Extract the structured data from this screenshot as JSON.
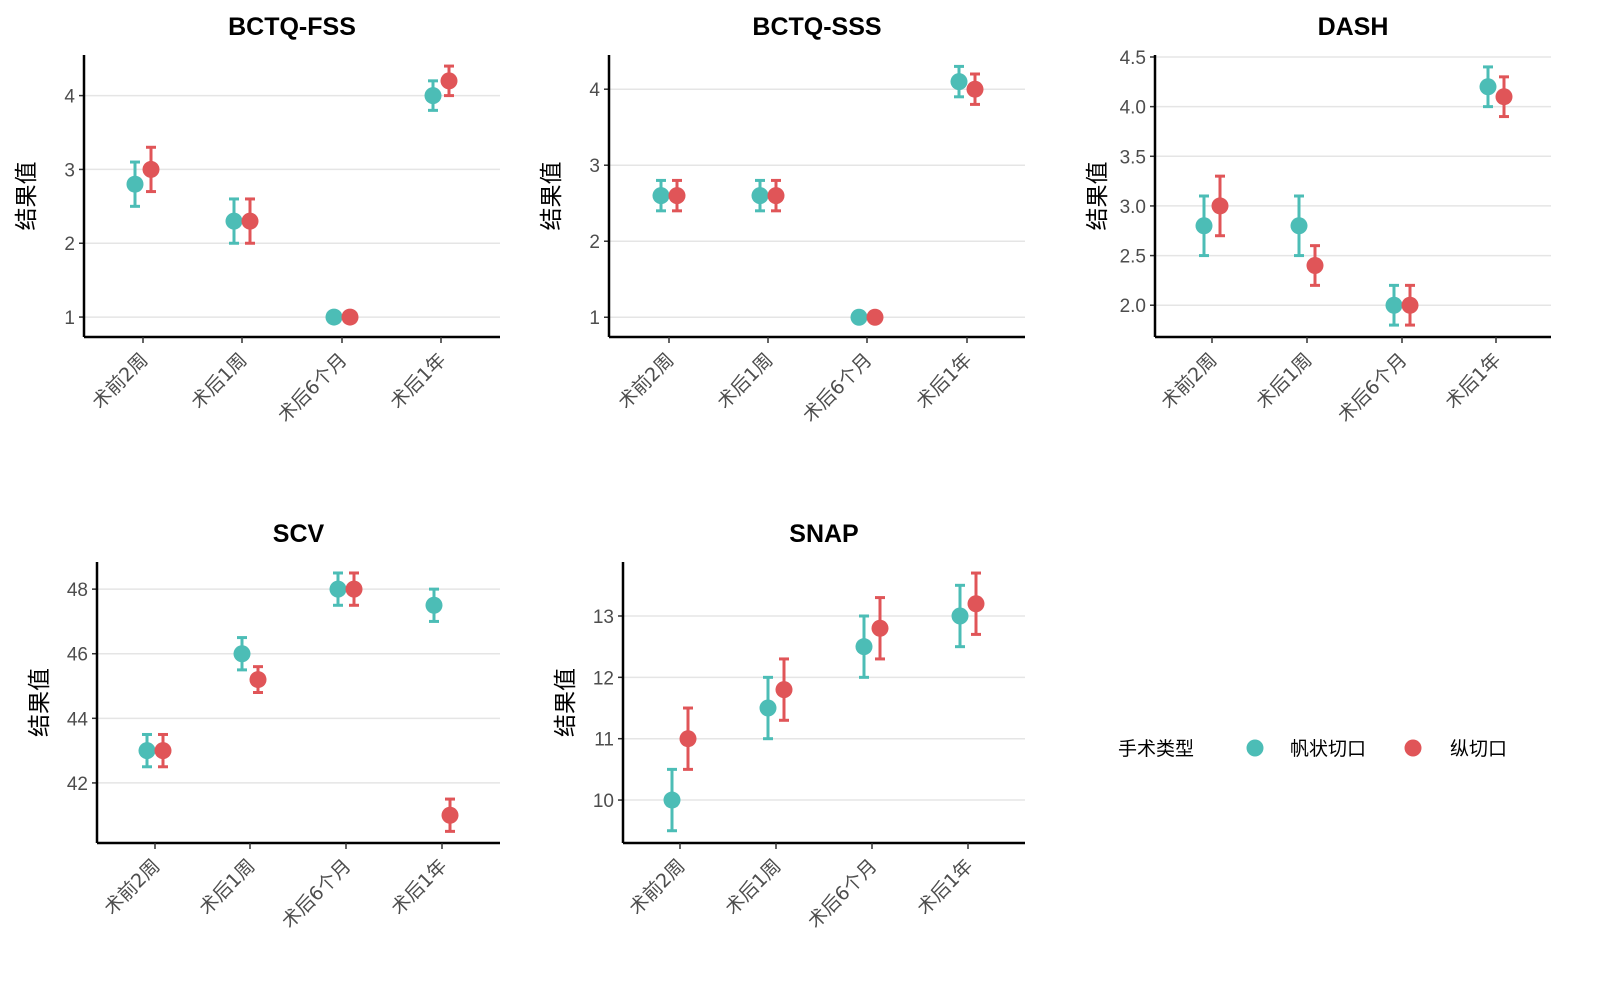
{
  "chart_data": [
    {
      "type": "scatter",
      "title": "BCTQ-FSS",
      "ylabel": "结果值",
      "categories": [
        "术前2周",
        "术后1周",
        "术后6个月",
        "术后1年"
      ],
      "ylim": [
        0.73,
        4.55
      ],
      "yticks": [
        1,
        2,
        3,
        4
      ],
      "grid": true,
      "series": [
        {
          "name": "帆状切口",
          "values": [
            2.8,
            2.3,
            1.0,
            4.0
          ],
          "lower": [
            2.5,
            2.0,
            0.95,
            3.8
          ],
          "upper": [
            3.1,
            2.6,
            1.05,
            4.2
          ]
        },
        {
          "name": "纵切口",
          "values": [
            3.0,
            2.3,
            1.0,
            4.2
          ],
          "lower": [
            2.7,
            2.0,
            0.95,
            4.0
          ],
          "upper": [
            3.3,
            2.6,
            1.05,
            4.4
          ]
        }
      ]
    },
    {
      "type": "scatter",
      "title": "BCTQ-SSS",
      "ylabel": "结果值",
      "categories": [
        "术前2周",
        "术后1周",
        "术后6个月",
        "术后1年"
      ],
      "ylim": [
        0.74,
        4.45
      ],
      "yticks": [
        1,
        2,
        3,
        4
      ],
      "grid": true,
      "series": [
        {
          "name": "帆状切口",
          "values": [
            2.6,
            2.6,
            1.0,
            4.1
          ],
          "lower": [
            2.4,
            2.4,
            0.95,
            3.9
          ],
          "upper": [
            2.8,
            2.8,
            1.05,
            4.3
          ]
        },
        {
          "name": "纵切口",
          "values": [
            2.6,
            2.6,
            1.0,
            4.0
          ],
          "lower": [
            2.4,
            2.4,
            0.95,
            3.8
          ],
          "upper": [
            2.8,
            2.8,
            1.05,
            4.2
          ]
        }
      ]
    },
    {
      "type": "scatter",
      "title": "DASH",
      "ylabel": "结果值",
      "categories": [
        "术前2周",
        "术后1周",
        "术后6个月",
        "术后1年"
      ],
      "ylim": [
        1.68,
        4.52
      ],
      "yticks": [
        "2.0",
        "2.5",
        "3.0",
        "3.5",
        "4.0",
        "4.5"
      ],
      "grid": true,
      "series": [
        {
          "name": "帆状切口",
          "values": [
            2.8,
            2.8,
            2.0,
            4.2
          ],
          "lower": [
            2.5,
            2.5,
            1.8,
            4.0
          ],
          "upper": [
            3.1,
            3.1,
            2.2,
            4.4
          ]
        },
        {
          "name": "纵切口",
          "values": [
            3.0,
            2.4,
            2.0,
            4.1
          ],
          "lower": [
            2.7,
            2.2,
            1.8,
            3.9
          ],
          "upper": [
            3.3,
            2.6,
            2.2,
            4.3
          ]
        }
      ]
    },
    {
      "type": "scatter",
      "title": "SCV",
      "ylabel": "结果值",
      "categories": [
        "术前2周",
        "术后1周",
        "术后6个月",
        "术后1年"
      ],
      "ylim": [
        40.14,
        48.84
      ],
      "yticks": [
        42,
        44,
        46,
        48
      ],
      "grid": true,
      "series": [
        {
          "name": "帆状切口",
          "values": [
            43,
            46,
            48,
            47.5
          ],
          "lower": [
            42.5,
            45.5,
            47.5,
            47
          ],
          "upper": [
            43.5,
            46.5,
            48.5,
            48
          ]
        },
        {
          "name": "纵切口",
          "values": [
            43,
            45.2,
            48,
            41
          ],
          "lower": [
            42.5,
            44.8,
            47.5,
            40.5
          ],
          "upper": [
            43.5,
            45.6,
            48.5,
            41.5
          ]
        }
      ]
    },
    {
      "type": "scatter",
      "title": "SNAP",
      "ylabel": "结果值",
      "categories": [
        "术前2周",
        "术后1周",
        "术后6个月",
        "术后1年"
      ],
      "ylim": [
        9.3,
        13.88
      ],
      "yticks": [
        10,
        11,
        12,
        13
      ],
      "grid": true,
      "series": [
        {
          "name": "帆状切口",
          "values": [
            10,
            11.5,
            12.5,
            13
          ],
          "lower": [
            9.5,
            11,
            12,
            12.5
          ],
          "upper": [
            10.5,
            12,
            13,
            13.5
          ]
        },
        {
          "name": "纵切口",
          "values": [
            11,
            11.8,
            12.8,
            13.2
          ],
          "lower": [
            10.5,
            11.3,
            12.3,
            12.7
          ],
          "upper": [
            11.5,
            12.3,
            13.3,
            13.7
          ]
        }
      ]
    }
  ],
  "legend": {
    "title": "手术类型",
    "placement": "right",
    "items": [
      {
        "label": "帆状切口",
        "color": "#4CBDB6"
      },
      {
        "label": "纵切口",
        "color": "#E05558"
      }
    ]
  }
}
